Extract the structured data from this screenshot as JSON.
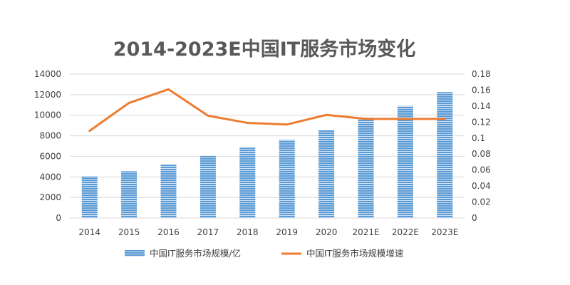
{
  "chart_data": {
    "type": "bar",
    "title": "2014-2023E中国IT服务市场变化",
    "categories": [
      "2014",
      "2015",
      "2016",
      "2017",
      "2018",
      "2019",
      "2020",
      "2021E",
      "2022E",
      "2023E"
    ],
    "series": [
      {
        "name": "中国IT服务市场规模/亿",
        "type": "bar",
        "axis": "left",
        "color": "#5b9bd5",
        "values": [
          4050,
          4550,
          5200,
          6070,
          6850,
          7600,
          8550,
          9750,
          10900,
          12250
        ]
      },
      {
        "name": "中国IT服务市场规模增速",
        "type": "line",
        "axis": "right",
        "color": "#ed7d31",
        "values": [
          0.109,
          0.144,
          0.161,
          0.128,
          0.119,
          0.117,
          0.129,
          0.124,
          0.124,
          0.124
        ]
      }
    ],
    "y_left": {
      "min": 0,
      "max": 14000,
      "ticks": [
        "0",
        "2000",
        "4000",
        "6000",
        "8000",
        "10000",
        "12000",
        "14000"
      ]
    },
    "y_right": {
      "min": 0,
      "max": 0.18,
      "ticks": [
        "0",
        "0.02",
        "0.04",
        "0.06",
        "0.08",
        "0.1",
        "0.12",
        "0.14",
        "0.16",
        "0.18"
      ]
    },
    "grid": true,
    "legend": "bottom"
  }
}
